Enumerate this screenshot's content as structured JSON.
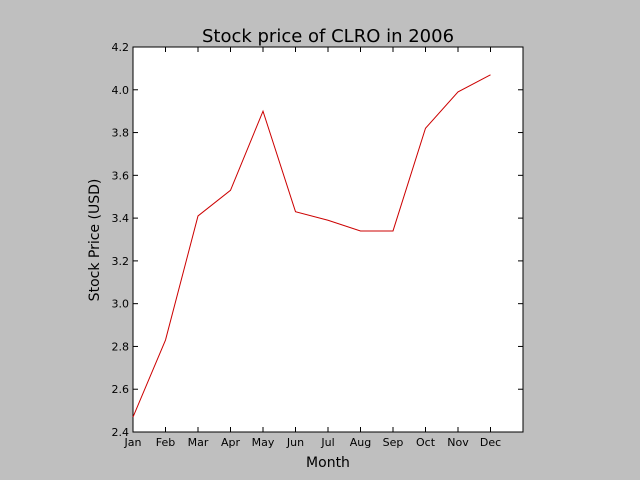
{
  "chart_data": {
    "type": "line",
    "title": "Stock price of CLRO in 2006",
    "xlabel": "Month",
    "ylabel": "Stock Price (USD)",
    "categories": [
      "Jan",
      "Feb",
      "Mar",
      "Apr",
      "May",
      "Jun",
      "Jul",
      "Aug",
      "Sep",
      "Oct",
      "Nov",
      "Dec"
    ],
    "series": [
      {
        "values": [
          2.47,
          2.83,
          3.41,
          3.53,
          3.9,
          3.43,
          3.39,
          3.34,
          3.34,
          3.82,
          3.99,
          4.07
        ]
      }
    ],
    "ylim": [
      2.4,
      4.2
    ],
    "yticks": [
      "2.4",
      "2.6",
      "2.8",
      "3.0",
      "3.2",
      "3.4",
      "3.6",
      "3.8",
      "4.0",
      "4.2"
    ],
    "grid": false,
    "legend": "none",
    "line_color": "#cc0000",
    "background_color": "#bfbfbf",
    "plot_background_color": "#ffffff"
  }
}
